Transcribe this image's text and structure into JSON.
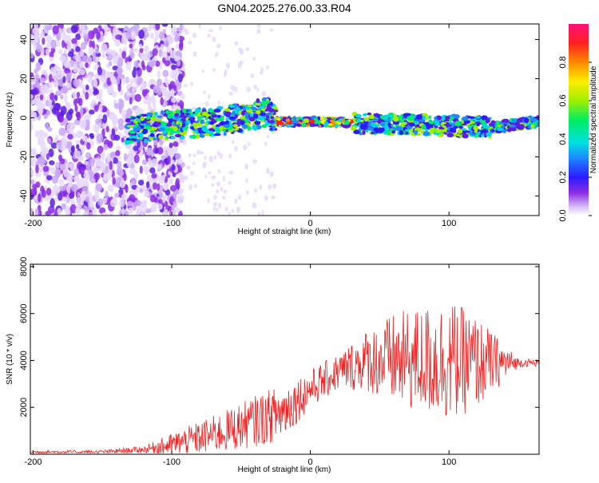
{
  "title": "GN04.2025.276.00.33.R04",
  "chart_data": [
    {
      "type": "heatmap",
      "xlabel": "Height of straight line (km)",
      "ylabel": "Frequency (Hz)",
      "xlim": [
        -202,
        165
      ],
      "ylim": [
        -50,
        48
      ],
      "xticks": [
        -200,
        -100,
        0,
        100
      ],
      "yticks": [
        -40,
        -20,
        0,
        20,
        40
      ],
      "ridge": [
        {
          "x": -130,
          "y": -6
        },
        {
          "x": -110,
          "y": -4
        },
        {
          "x": -90,
          "y": -3
        },
        {
          "x": -70,
          "y": -2
        },
        {
          "x": -50,
          "y": 0
        },
        {
          "x": -30,
          "y": 3
        },
        {
          "x": -25,
          "y": -2
        },
        {
          "x": 0,
          "y": -2
        },
        {
          "x": 50,
          "y": -3
        },
        {
          "x": 100,
          "y": -4
        },
        {
          "x": 130,
          "y": -5
        },
        {
          "x": 165,
          "y": -2
        }
      ],
      "colorbar": {
        "label": "Normalized spectral amplitude",
        "range": [
          0,
          1
        ],
        "ticks": [
          "0.0",
          "0.2",
          "0.4",
          "0.6",
          "0.8"
        ],
        "tick_values": [
          0,
          0.2,
          0.4,
          0.6,
          0.8
        ]
      }
    },
    {
      "type": "line",
      "xlabel": "Height of straight line (km)",
      "ylabel": "SNR (10 * v/v)",
      "xlim": [
        -202,
        165
      ],
      "ylim": [
        0,
        8100
      ],
      "xticks": [
        -200,
        -100,
        0,
        100
      ],
      "yticks": [
        2000,
        4000,
        6000,
        8000
      ],
      "series": [
        {
          "name": "SNR",
          "color": "#ee2222",
          "envelope": {
            "x": [
              -202,
              -150,
              -120,
              -100,
              -80,
              -60,
              -40,
              -20,
              0,
              20,
              40,
              60,
              80,
              100,
              120,
              140,
              150,
              165
            ],
            "mean": [
              100,
              100,
              200,
              400,
              700,
              1000,
              1400,
              1800,
              2800,
              3500,
              4000,
              4000,
              4000,
              4000,
              3900,
              3900,
              3900,
              3900
            ],
            "amp": [
              60,
              80,
              150,
              500,
              700,
              900,
              1100,
              1200,
              800,
              800,
              1300,
              2000,
              2300,
              2600,
              2000,
              800,
              200,
              150
            ]
          }
        }
      ]
    }
  ]
}
